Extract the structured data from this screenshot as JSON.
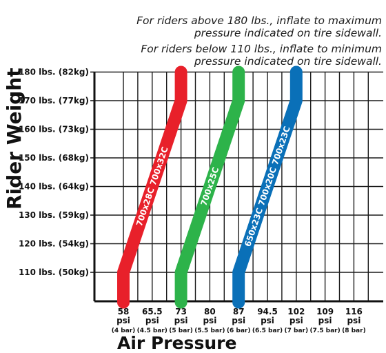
{
  "notes": {
    "line1a": "For riders above 180 lbs., inflate to maximum",
    "line1b": "pressure indicated on tire sidewall.",
    "line2a": "For riders below 110 lbs., inflate to minimum",
    "line2b": "pressure indicated on tire sidewall."
  },
  "chart_data": {
    "type": "line",
    "xlabel": "Air Pressure",
    "ylabel": "Rider Weight",
    "x_ticks": [
      {
        "value": 58,
        "psi": "58",
        "unit": "psi",
        "bar": "(4 bar)"
      },
      {
        "value": 65.5,
        "psi": "65.5",
        "unit": "psi",
        "bar": "(4.5 bar)"
      },
      {
        "value": 73,
        "psi": "73",
        "unit": "psi",
        "bar": "(5 bar)"
      },
      {
        "value": 80,
        "psi": "80",
        "unit": "psi",
        "bar": "(5.5 bar)"
      },
      {
        "value": 87,
        "psi": "87",
        "unit": "psi",
        "bar": "(6 bar)"
      },
      {
        "value": 94.5,
        "psi": "94.5",
        "unit": "psi",
        "bar": "(6.5 bar)"
      },
      {
        "value": 102,
        "psi": "102",
        "unit": "psi",
        "bar": "(7 bar)"
      },
      {
        "value": 109,
        "psi": "109",
        "unit": "psi",
        "bar": "(7.5 bar)"
      },
      {
        "value": 116,
        "psi": "116",
        "unit": "psi",
        "bar": "(8 bar)"
      }
    ],
    "y_ticks": [
      {
        "value": 110,
        "label": "110 lbs. (50kg)"
      },
      {
        "value": 120,
        "label": "120 lbs. (54kg)"
      },
      {
        "value": 130,
        "label": "130 lbs. (59kg)"
      },
      {
        "value": 140,
        "label": "140 lbs. (64kg)"
      },
      {
        "value": 150,
        "label": "150 lbs. (68kg)"
      },
      {
        "value": 160,
        "label": "160 lbs. (73kg)"
      },
      {
        "value": 170,
        "label": "170 lbs. (77kg)"
      },
      {
        "value": 180,
        "label": "180 lbs. (82kg)"
      }
    ],
    "ylim": [
      100,
      182
    ],
    "grid": true,
    "series": [
      {
        "name": "700x28C 700x32C",
        "color": "#e8202a",
        "points": [
          [
            58,
            100
          ],
          [
            58,
            110
          ],
          [
            73,
            170
          ],
          [
            73,
            180
          ]
        ]
      },
      {
        "name": "700x25C",
        "color": "#2db34a",
        "points": [
          [
            73,
            100
          ],
          [
            73,
            110
          ],
          [
            87,
            170
          ],
          [
            87,
            180
          ]
        ]
      },
      {
        "name": "650x23C 700x20C 700x23C",
        "color": "#0a70b8",
        "points": [
          [
            87,
            100
          ],
          [
            87,
            110
          ],
          [
            102,
            170
          ],
          [
            102,
            180
          ]
        ]
      }
    ]
  }
}
